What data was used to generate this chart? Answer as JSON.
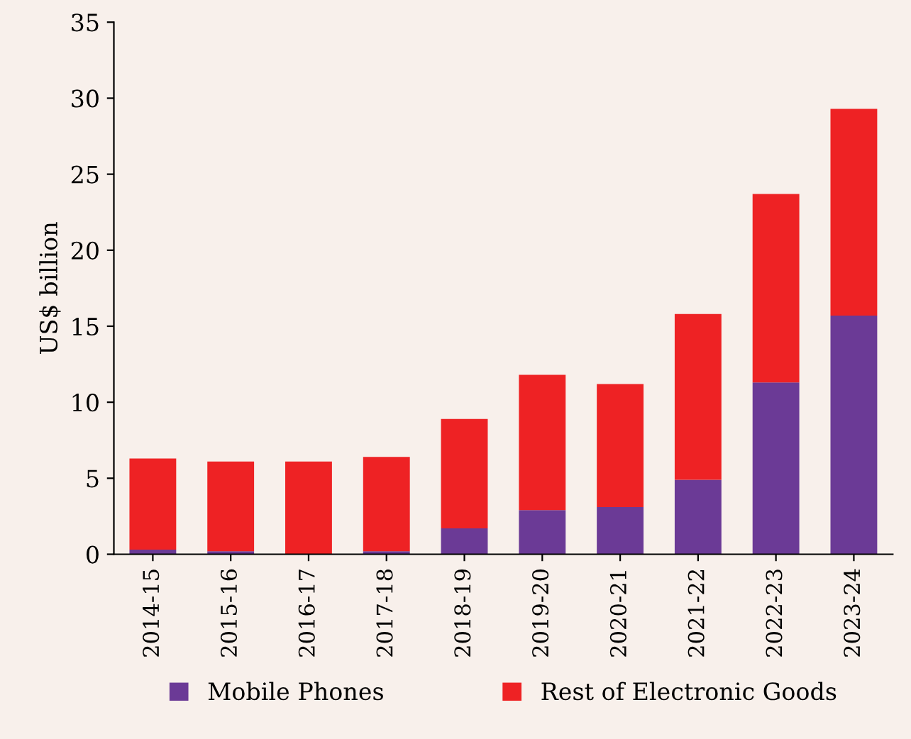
{
  "chart_data": {
    "type": "bar",
    "stacked": true,
    "ylabel": "US$ billion",
    "categories": [
      "2014-15",
      "2015-16",
      "2016-17",
      "2017-18",
      "2018-19",
      "2019-20",
      "2020-21",
      "2021-22",
      "2022-23",
      "2023-24"
    ],
    "series": [
      {
        "name": "Mobile Phones",
        "color": "#6b3a96",
        "values": [
          0.3,
          0.2,
          0.0,
          0.2,
          1.7,
          2.9,
          3.1,
          4.9,
          11.3,
          15.7
        ]
      },
      {
        "name": "Rest of Electronic Goods",
        "color": "#ee2224",
        "values": [
          6.0,
          5.9,
          6.1,
          6.2,
          7.2,
          8.9,
          8.1,
          10.9,
          12.4,
          13.6
        ]
      }
    ],
    "ylim": [
      0,
      35
    ],
    "yticks": [
      0,
      5,
      10,
      15,
      20,
      25,
      30,
      35
    ],
    "grid": false,
    "legend": "bottom"
  }
}
